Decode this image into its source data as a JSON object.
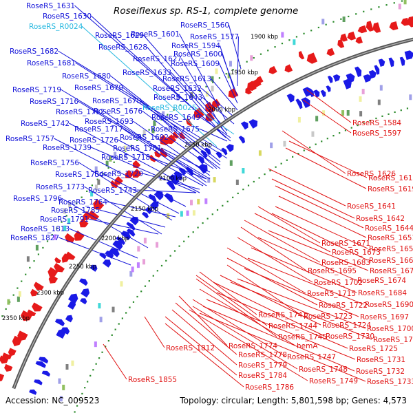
{
  "title": "Roseiflexus sp. RS-1, complete genome",
  "footer": {
    "accession": "Accession: NC_009523",
    "summary": "Topology: circular; Length: 5,801,598 bp; Genes: 4,573"
  },
  "colors": {
    "left_labels": "#1010d8",
    "rna_labels": "#25b8e0",
    "right_labels": "#e01010",
    "backbone": "#777777",
    "ticks": "#2a8a2a",
    "plus_strand_genes": "#1a1ae6",
    "minus_strand_genes": "#e61a1a"
  },
  "scale_labels": [
    "1900 kbp",
    "1950 kbp",
    "2000 kbp",
    "2050 kbp",
    "2100 kbp",
    "2150 kbp",
    "2200 kbp",
    "2250 kbp",
    "2300 kbp",
    "2350 kbp"
  ],
  "left_labels": [
    {
      "text": "RoseRS_1631",
      "type": "gene"
    },
    {
      "text": "RoseRS_1630",
      "type": "gene"
    },
    {
      "text": "RoseRS_R0024",
      "type": "rna"
    },
    {
      "text": "RoseRS_1629",
      "type": "gene"
    },
    {
      "text": "RoseRS_1601",
      "type": "gene"
    },
    {
      "text": "RoseRS_1560",
      "type": "gene"
    },
    {
      "text": "RoseRS_1577",
      "type": "gene"
    },
    {
      "text": "RoseRS_1628",
      "type": "gene"
    },
    {
      "text": "RoseRS_1594",
      "type": "gene"
    },
    {
      "text": "RoseRS_1682",
      "type": "gene"
    },
    {
      "text": "RoseRS_1627",
      "type": "gene"
    },
    {
      "text": "RoseRS_1600",
      "type": "gene"
    },
    {
      "text": "RoseRS_1681",
      "type": "gene"
    },
    {
      "text": "RoseRS_1609",
      "type": "gene"
    },
    {
      "text": "RoseRS_1633",
      "type": "gene"
    },
    {
      "text": "RoseRS_1680",
      "type": "gene"
    },
    {
      "text": "RoseRS_1613",
      "type": "gene"
    },
    {
      "text": "RoseRS_1719",
      "type": "gene"
    },
    {
      "text": "RoseRS_1679",
      "type": "gene"
    },
    {
      "text": "RoseRS_1632",
      "type": "gene"
    },
    {
      "text": "RoseRS_1643",
      "type": "gene"
    },
    {
      "text": "RoseRS_1716",
      "type": "gene"
    },
    {
      "text": "RoseRS_1678",
      "type": "gene"
    },
    {
      "text": "RoseRS_R0025",
      "type": "rna"
    },
    {
      "text": "RoseRS_1712",
      "type": "gene"
    },
    {
      "text": "RoseRS_1676",
      "type": "gene"
    },
    {
      "text": "RoseRS_1649",
      "type": "gene"
    },
    {
      "text": "RoseRS_1742",
      "type": "gene"
    },
    {
      "text": "RoseRS_1693",
      "type": "gene"
    },
    {
      "text": "RoseRS_1717",
      "type": "gene"
    },
    {
      "text": "RoseRS_1675",
      "type": "gene"
    },
    {
      "text": "RoseRS_1757",
      "type": "gene"
    },
    {
      "text": "RoseRS_1726",
      "type": "gene"
    },
    {
      "text": "RoseRS_1692",
      "type": "gene"
    },
    {
      "text": "RoseRS_1739",
      "type": "gene"
    },
    {
      "text": "RoseRS_1701",
      "type": "gene"
    },
    {
      "text": "RoseRS_1718",
      "type": "gene"
    },
    {
      "text": "RoseRS_1756",
      "type": "gene"
    },
    {
      "text": "RoseRS_1729",
      "type": "gene"
    },
    {
      "text": "RoseRS_1754",
      "type": "gene"
    },
    {
      "text": "RoseRS_1773",
      "type": "gene"
    },
    {
      "text": "RoseRS_1743",
      "type": "gene"
    },
    {
      "text": "RoseRS_1796",
      "type": "gene"
    },
    {
      "text": "RoseRS_1764",
      "type": "gene"
    },
    {
      "text": "RoseRS_1785",
      "type": "gene"
    },
    {
      "text": "RoseRS_1791",
      "type": "gene"
    },
    {
      "text": "RoseRS_1813",
      "type": "gene"
    },
    {
      "text": "RoseRS_1827",
      "type": "gene"
    }
  ],
  "right_labels": [
    {
      "text": "RoseRS_1584"
    },
    {
      "text": "RoseRS_1597"
    },
    {
      "text": "RoseRS_1626"
    },
    {
      "text": "RoseRS_1615"
    },
    {
      "text": "RoseRS_1619"
    },
    {
      "text": "RoseRS_1641"
    },
    {
      "text": "RoseRS_1642"
    },
    {
      "text": "RoseRS_1644"
    },
    {
      "text": "RoseRS_1651"
    },
    {
      "text": "RoseRS_1671"
    },
    {
      "text": "RoseRS_1655"
    },
    {
      "text": "RoseRS_1673"
    },
    {
      "text": "RoseRS_1663"
    },
    {
      "text": "RoseRS_1683"
    },
    {
      "text": "RoseRS_1695"
    },
    {
      "text": "RoseRS_1670"
    },
    {
      "text": "RoseRS_1702"
    },
    {
      "text": "RoseRS_1674"
    },
    {
      "text": "RoseRS_1715"
    },
    {
      "text": "RoseRS_1684"
    },
    {
      "text": "RoseRS_1722"
    },
    {
      "text": "RoseRS_1690"
    },
    {
      "text": "RoseRS_1741"
    },
    {
      "text": "RoseRS_1723"
    },
    {
      "text": "RoseRS_1697"
    },
    {
      "text": "RoseRS_1744"
    },
    {
      "text": "RoseRS_1724"
    },
    {
      "text": "RoseRS_1700"
    },
    {
      "text": "RoseRS_1745"
    },
    {
      "text": "RoseRS_1730"
    },
    {
      "text": "RoseRS_1703"
    },
    {
      "text": "RoseRS_1774"
    },
    {
      "text": "hemA"
    },
    {
      "text": "RoseRS_1725"
    },
    {
      "text": "RoseRS_1812"
    },
    {
      "text": "RoseRS_1778"
    },
    {
      "text": "RoseRS_1747"
    },
    {
      "text": "RoseRS_1731"
    },
    {
      "text": "RoseRS_1779"
    },
    {
      "text": "RoseRS_1748"
    },
    {
      "text": "RoseRS_1732"
    },
    {
      "text": "RoseRS_1784"
    },
    {
      "text": "RoseRS_1749"
    },
    {
      "text": "RoseRS_1733"
    },
    {
      "text": "RoseRS_1855"
    },
    {
      "text": "RoseRS_1786"
    }
  ]
}
